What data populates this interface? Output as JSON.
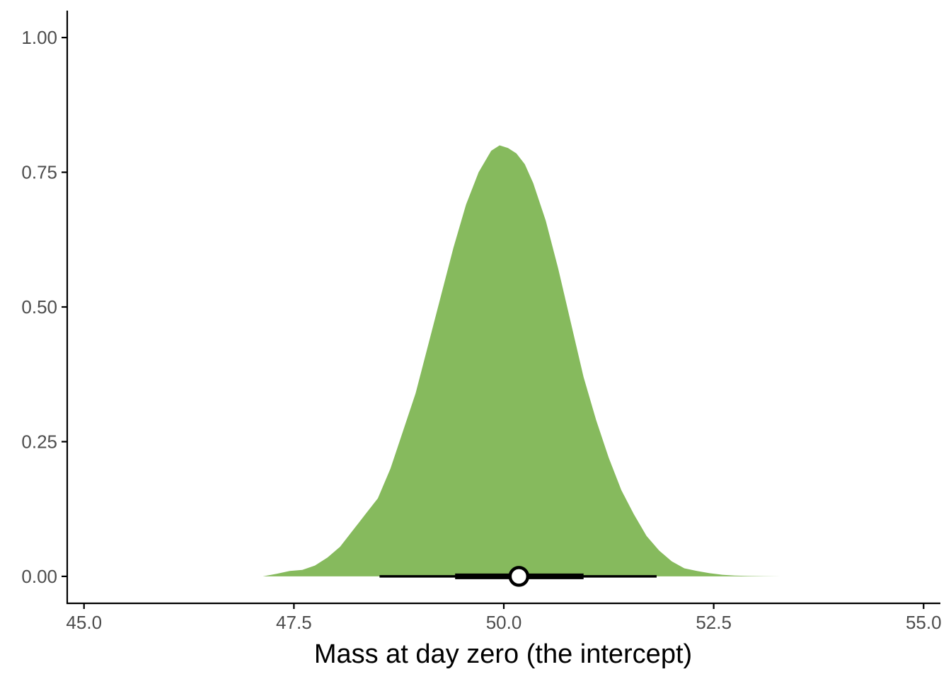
{
  "chart_data": {
    "type": "area",
    "title": "",
    "xlabel": "Mass at day zero (the intercept)",
    "ylabel": "",
    "xlim": [
      44.8,
      55.2
    ],
    "ylim": [
      -0.05,
      1.05
    ],
    "x_ticks": [
      45.0,
      47.5,
      50.0,
      52.5,
      55.0
    ],
    "x_tick_labels": [
      "45.0",
      "47.5",
      "50.0",
      "52.5",
      "55.0"
    ],
    "y_ticks": [
      0.0,
      0.25,
      0.5,
      0.75,
      1.0
    ],
    "y_tick_labels": [
      "0.00",
      "0.25",
      "0.50",
      "0.75",
      "1.00"
    ],
    "grid": false,
    "fill_color": "#86ba5d",
    "density": {
      "x": [
        47.13,
        47.3,
        47.45,
        47.6,
        47.75,
        47.9,
        48.05,
        48.2,
        48.35,
        48.5,
        48.65,
        48.8,
        48.95,
        49.1,
        49.25,
        49.4,
        49.55,
        49.7,
        49.85,
        49.95,
        50.05,
        50.15,
        50.25,
        50.35,
        50.5,
        50.65,
        50.8,
        50.95,
        51.1,
        51.25,
        51.4,
        51.55,
        51.7,
        51.85,
        52.0,
        52.15,
        52.3,
        52.45,
        52.6,
        52.75,
        52.9,
        53.1,
        53.3,
        53.45
      ],
      "y": [
        0.0,
        0.005,
        0.01,
        0.012,
        0.02,
        0.035,
        0.055,
        0.085,
        0.115,
        0.145,
        0.2,
        0.27,
        0.34,
        0.43,
        0.52,
        0.61,
        0.69,
        0.75,
        0.79,
        0.8,
        0.795,
        0.785,
        0.765,
        0.73,
        0.66,
        0.57,
        0.47,
        0.37,
        0.29,
        0.22,
        0.16,
        0.115,
        0.075,
        0.048,
        0.028,
        0.015,
        0.01,
        0.006,
        0.003,
        0.0015,
        0.0008,
        0.0003,
        0.0001,
        0.0
      ]
    },
    "point_interval": {
      "point": 50.18,
      "inner_interval": [
        49.42,
        50.95
      ],
      "outer_interval": [
        48.52,
        51.82
      ],
      "y": 0.0
    }
  }
}
